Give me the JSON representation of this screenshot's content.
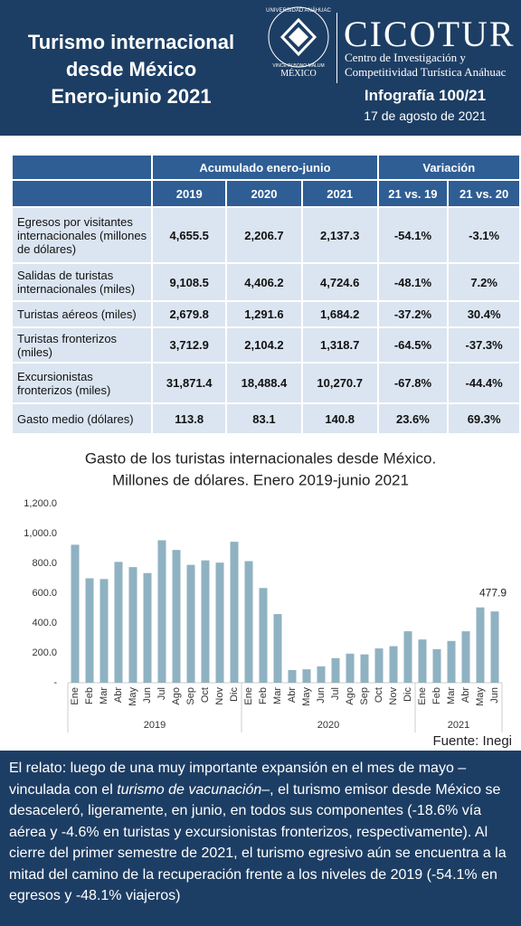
{
  "header": {
    "title": [
      "Turismo internacional",
      "desde México",
      "Enero-junio 2021"
    ],
    "university": "UNIVERSIDAD ANÁHUAC",
    "motto": "VINCE IN BONO MALUM",
    "university_city": "MÉXICO",
    "brand": "CICOTUR",
    "brand_lines": [
      "Centro de Investigación y",
      "Competitividad Turística Anáhuac"
    ],
    "issue": "Infografía 100/21",
    "date": "17 de agosto de 2021"
  },
  "table": {
    "header_groups": [
      "Acumulado enero-junio",
      "Variación"
    ],
    "columns": [
      "2019",
      "2020",
      "2021",
      "21 vs. 19",
      "21 vs. 20"
    ],
    "rows": [
      [
        "Egresos por visitantes internacionales (millones de dólares)",
        "4,655.5",
        "2,206.7",
        "2,137.3",
        "-54.1%",
        "-3.1%"
      ],
      [
        "Salidas de turistas internacionales (miles)",
        "9,108.5",
        "4,406.2",
        "4,724.6",
        "-48.1%",
        "7.2%"
      ],
      [
        "Turistas aéreos (miles)",
        "2,679.8",
        "1,291.6",
        "1,684.2",
        "-37.2%",
        "30.4%"
      ],
      [
        "Turistas fronterizos (miles)",
        "3,712.9",
        "2,104.2",
        "1,318.7",
        "-64.5%",
        "-37.3%"
      ],
      [
        "Excursionistas fronterizos (miles)",
        "31,871.4",
        "18,488.4",
        "10,270.7",
        "-67.8%",
        "-44.4%"
      ],
      [
        "Gasto medio (dólares)",
        "113.8",
        "83.1",
        "140.8",
        "23.6%",
        "69.3%"
      ]
    ]
  },
  "chart_data": {
    "type": "bar",
    "title": "Gasto de los turistas internacionales desde México.",
    "subtitle": "Millones de dólares. Enero 2019-junio 2021",
    "categories": [
      "Ene",
      "Feb",
      "Mar",
      "Abr",
      "May",
      "Jun",
      "Jul",
      "Ago",
      "Sep",
      "Oct",
      "Nov",
      "Dic",
      "Ene",
      "Feb",
      "Mar",
      "Abr",
      "May",
      "Jun",
      "Jul",
      "Ago",
      "Sep",
      "Oct",
      "Nov",
      "Dic",
      "Ene",
      "Feb",
      "Mar",
      "Abr",
      "May",
      "Jun"
    ],
    "groups": [
      "2019",
      "2020",
      "2021"
    ],
    "values": [
      925,
      700,
      695,
      810,
      775,
      735,
      955,
      890,
      790,
      820,
      805,
      945,
      815,
      635,
      460,
      85,
      90,
      110,
      165,
      195,
      190,
      230,
      245,
      345,
      290,
      225,
      280,
      345,
      505,
      477.9
    ],
    "color": "#8fb2c2",
    "ylim": [
      0,
      1200
    ],
    "yticks": [
      {
        "value": 0,
        "label": "-"
      },
      {
        "value": 200,
        "label": "200.0"
      },
      {
        "value": 400,
        "label": "400.0"
      },
      {
        "value": 600,
        "label": "600.0"
      },
      {
        "value": 800,
        "label": "800.0"
      },
      {
        "value": 1000,
        "label": "1,000.0"
      },
      {
        "value": 1200,
        "label": "1,200.0"
      }
    ],
    "grid": false,
    "source": "Fuente: Inegi"
  },
  "footer": {
    "text": [
      "El relato: luego de una muy importante expansión en el mes de mayo –vinculada con el ",
      "turismo de vacunación",
      "–, el turismo emisor desde México se desaceleró, ligeramente, en junio, en todos sus componentes (-18.6% vía aérea y -4.6% en turistas y excursionistas fronterizos, respectivamente). Al cierre del primer semestre de 2021, el turismo egresivo aún se encuentra a la mitad del camino de la recuperación frente a los niveles de 2019 (-54.1% en egresos y -48.1% viajeros)"
    ]
  }
}
